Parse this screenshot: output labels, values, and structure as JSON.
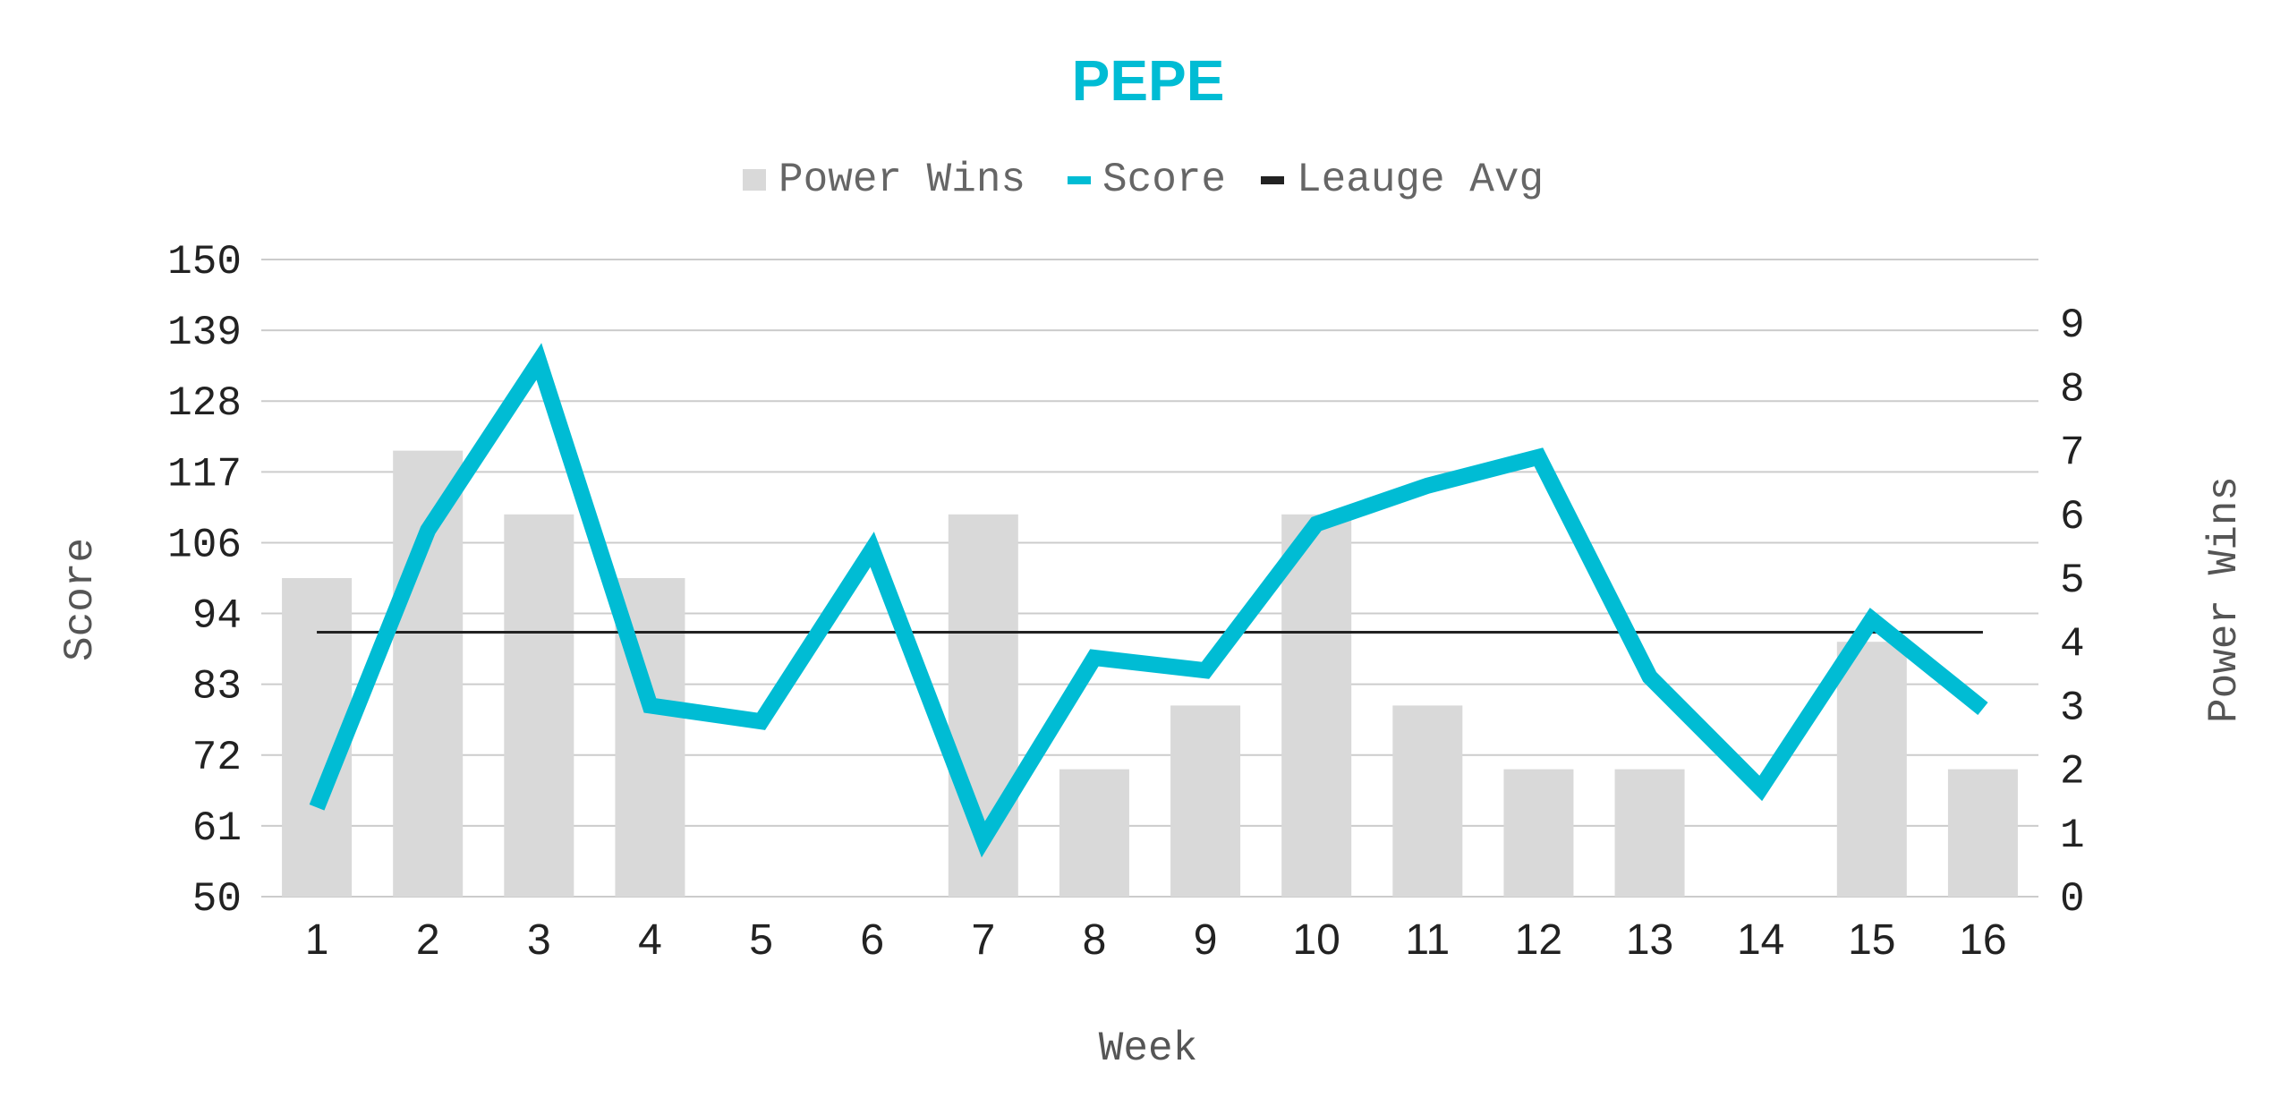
{
  "chart_data": {
    "type": "bar",
    "title": "PEPE",
    "xlabel": "Week",
    "ylabel": "Score",
    "y2label": "Power Wins",
    "categories": [
      "1",
      "2",
      "3",
      "4",
      "5",
      "6",
      "7",
      "8",
      "9",
      "10",
      "11",
      "12",
      "13",
      "14",
      "15",
      "16"
    ],
    "ylim": [
      50,
      150
    ],
    "yticks": [
      "50",
      "61",
      "72",
      "83",
      "94",
      "106",
      "117",
      "128",
      "139",
      "150"
    ],
    "y2lim": [
      0,
      10
    ],
    "y2ticks": [
      "0",
      "1",
      "2",
      "3",
      "4",
      "5",
      "6",
      "7",
      "8",
      "9"
    ],
    "grid": true,
    "legend_position": "top-center",
    "legend": [
      "Power Wins",
      "Score",
      "Leauge Avg"
    ],
    "series": [
      {
        "name": "Power Wins",
        "type": "bar",
        "axis": "right",
        "color": "#d9d9d9",
        "values": [
          5,
          7,
          6,
          5,
          0,
          0,
          6,
          2,
          3,
          6,
          3,
          2,
          2,
          0,
          4,
          2
        ]
      },
      {
        "name": "Score",
        "type": "line",
        "axis": "left",
        "color": "#00bcd4",
        "values": [
          64.0,
          107.5,
          134.0,
          80.0,
          77.5,
          104.5,
          59.0,
          87.5,
          85.5,
          108.5,
          114.5,
          119.0,
          84.5,
          67.0,
          93.5,
          79.5
        ]
      },
      {
        "name": "Leauge Avg",
        "type": "line",
        "axis": "left",
        "color": "#222222",
        "values": [
          91.5,
          91.5,
          91.5,
          91.5,
          91.5,
          91.5,
          91.5,
          91.5,
          91.5,
          91.5,
          91.5,
          91.5,
          91.5,
          91.5,
          91.5,
          91.5
        ]
      }
    ]
  }
}
